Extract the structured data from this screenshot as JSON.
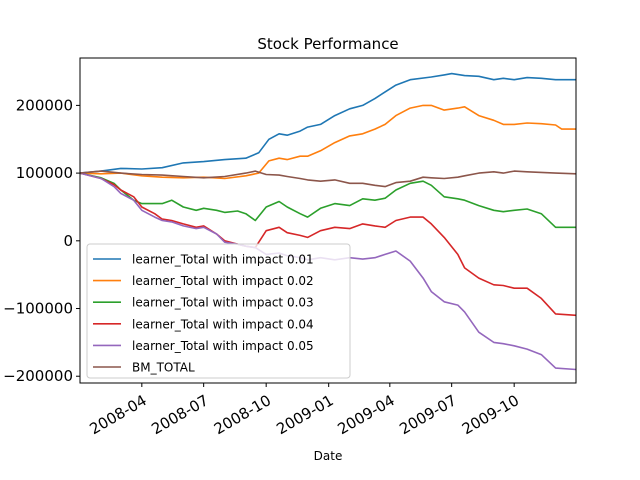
{
  "chart_data": {
    "type": "line",
    "title": "Stock Performance",
    "xlabel": "Date",
    "ylabel": "",
    "xlim": [
      "2008-01-01",
      "2009-12-31"
    ],
    "ylim": [
      -210000,
      270000
    ],
    "x_ticks": [
      {
        "date": "2008-04-01",
        "label": "2008-04"
      },
      {
        "date": "2008-07-01",
        "label": "2008-07"
      },
      {
        "date": "2008-10-01",
        "label": "2008-10"
      },
      {
        "date": "2009-01-01",
        "label": "2009-01"
      },
      {
        "date": "2009-04-01",
        "label": "2009-04"
      },
      {
        "date": "2009-07-01",
        "label": "2009-07"
      },
      {
        "date": "2009-10-01",
        "label": "2009-10"
      }
    ],
    "y_ticks": [
      {
        "value": 200000,
        "label": "200000"
      },
      {
        "value": 100000,
        "label": "100000"
      },
      {
        "value": 0,
        "label": "0"
      },
      {
        "value": -100000,
        "label": "−100000"
      },
      {
        "value": -200000,
        "label": "−200000"
      }
    ],
    "grid": false,
    "legend_position": "lower-left",
    "series": [
      {
        "name": "learner_Total with impact 0.01",
        "color": "#1f77b4",
        "points": [
          [
            "2008-01-01",
            100000
          ],
          [
            "2008-02-01",
            103000
          ],
          [
            "2008-03-01",
            107000
          ],
          [
            "2008-04-01",
            106000
          ],
          [
            "2008-05-01",
            108000
          ],
          [
            "2008-06-01",
            115000
          ],
          [
            "2008-07-01",
            117000
          ],
          [
            "2008-08-01",
            120000
          ],
          [
            "2008-09-01",
            122000
          ],
          [
            "2008-09-20",
            130000
          ],
          [
            "2008-10-05",
            150000
          ],
          [
            "2008-10-20",
            158000
          ],
          [
            "2008-11-01",
            156000
          ],
          [
            "2008-11-20",
            162000
          ],
          [
            "2008-12-01",
            168000
          ],
          [
            "2008-12-20",
            172000
          ],
          [
            "2009-01-10",
            185000
          ],
          [
            "2009-02-01",
            195000
          ],
          [
            "2009-02-20",
            200000
          ],
          [
            "2009-03-10",
            210000
          ],
          [
            "2009-03-25",
            220000
          ],
          [
            "2009-04-10",
            230000
          ],
          [
            "2009-05-01",
            238000
          ],
          [
            "2009-06-01",
            242000
          ],
          [
            "2009-06-20",
            245000
          ],
          [
            "2009-07-01",
            247000
          ],
          [
            "2009-07-20",
            244000
          ],
          [
            "2009-08-10",
            243000
          ],
          [
            "2009-09-01",
            238000
          ],
          [
            "2009-09-15",
            240000
          ],
          [
            "2009-10-01",
            238000
          ],
          [
            "2009-10-20",
            241000
          ],
          [
            "2009-11-10",
            240000
          ],
          [
            "2009-12-01",
            238000
          ],
          [
            "2009-12-31",
            238000
          ]
        ]
      },
      {
        "name": "learner_Total with impact 0.02",
        "color": "#ff7f0e",
        "points": [
          [
            "2008-01-01",
            100000
          ],
          [
            "2008-02-01",
            99000
          ],
          [
            "2008-03-01",
            100000
          ],
          [
            "2008-04-01",
            96000
          ],
          [
            "2008-05-01",
            94000
          ],
          [
            "2008-06-01",
            93000
          ],
          [
            "2008-07-01",
            94000
          ],
          [
            "2008-08-01",
            92000
          ],
          [
            "2008-09-01",
            96000
          ],
          [
            "2008-09-20",
            100000
          ],
          [
            "2008-10-05",
            118000
          ],
          [
            "2008-10-20",
            122000
          ],
          [
            "2008-11-01",
            120000
          ],
          [
            "2008-11-20",
            125000
          ],
          [
            "2008-12-01",
            125000
          ],
          [
            "2008-12-20",
            133000
          ],
          [
            "2009-01-10",
            145000
          ],
          [
            "2009-02-01",
            155000
          ],
          [
            "2009-02-20",
            158000
          ],
          [
            "2009-03-10",
            165000
          ],
          [
            "2009-03-25",
            172000
          ],
          [
            "2009-04-10",
            185000
          ],
          [
            "2009-05-01",
            196000
          ],
          [
            "2009-05-20",
            200000
          ],
          [
            "2009-06-01",
            200000
          ],
          [
            "2009-06-20",
            193000
          ],
          [
            "2009-07-10",
            196000
          ],
          [
            "2009-07-20",
            198000
          ],
          [
            "2009-08-10",
            185000
          ],
          [
            "2009-09-01",
            178000
          ],
          [
            "2009-09-15",
            172000
          ],
          [
            "2009-10-01",
            172000
          ],
          [
            "2009-10-20",
            174000
          ],
          [
            "2009-11-10",
            173000
          ],
          [
            "2009-12-01",
            171000
          ],
          [
            "2009-12-10",
            165000
          ],
          [
            "2009-12-31",
            165000
          ]
        ]
      },
      {
        "name": "learner_Total with impact 0.03",
        "color": "#2ca02c",
        "points": [
          [
            "2008-01-01",
            100000
          ],
          [
            "2008-02-01",
            93000
          ],
          [
            "2008-02-20",
            85000
          ],
          [
            "2008-03-01",
            75000
          ],
          [
            "2008-03-20",
            60000
          ],
          [
            "2008-04-01",
            55000
          ],
          [
            "2008-04-20",
            55000
          ],
          [
            "2008-05-01",
            55000
          ],
          [
            "2008-05-15",
            60000
          ],
          [
            "2008-06-01",
            50000
          ],
          [
            "2008-06-20",
            45000
          ],
          [
            "2008-07-01",
            48000
          ],
          [
            "2008-07-20",
            45000
          ],
          [
            "2008-08-01",
            42000
          ],
          [
            "2008-08-20",
            44000
          ],
          [
            "2008-09-01",
            40000
          ],
          [
            "2008-09-15",
            30000
          ],
          [
            "2008-10-01",
            50000
          ],
          [
            "2008-10-20",
            58000
          ],
          [
            "2008-11-01",
            50000
          ],
          [
            "2008-11-20",
            40000
          ],
          [
            "2008-12-01",
            35000
          ],
          [
            "2008-12-20",
            48000
          ],
          [
            "2009-01-10",
            55000
          ],
          [
            "2009-02-01",
            52000
          ],
          [
            "2009-02-20",
            62000
          ],
          [
            "2009-03-10",
            60000
          ],
          [
            "2009-03-25",
            63000
          ],
          [
            "2009-04-10",
            75000
          ],
          [
            "2009-05-01",
            85000
          ],
          [
            "2009-05-20",
            88000
          ],
          [
            "2009-06-01",
            82000
          ],
          [
            "2009-06-20",
            65000
          ],
          [
            "2009-07-10",
            62000
          ],
          [
            "2009-07-20",
            60000
          ],
          [
            "2009-08-10",
            52000
          ],
          [
            "2009-09-01",
            45000
          ],
          [
            "2009-09-15",
            43000
          ],
          [
            "2009-10-01",
            45000
          ],
          [
            "2009-10-20",
            47000
          ],
          [
            "2009-11-10",
            40000
          ],
          [
            "2009-12-01",
            20000
          ],
          [
            "2009-12-31",
            20000
          ]
        ]
      },
      {
        "name": "learner_Total with impact 0.04",
        "color": "#d62728",
        "points": [
          [
            "2008-01-01",
            100000
          ],
          [
            "2008-02-01",
            92000
          ],
          [
            "2008-02-20",
            83000
          ],
          [
            "2008-03-01",
            75000
          ],
          [
            "2008-03-20",
            65000
          ],
          [
            "2008-04-01",
            50000
          ],
          [
            "2008-04-20",
            40000
          ],
          [
            "2008-05-01",
            32000
          ],
          [
            "2008-05-15",
            30000
          ],
          [
            "2008-06-01",
            25000
          ],
          [
            "2008-06-20",
            20000
          ],
          [
            "2008-07-01",
            22000
          ],
          [
            "2008-07-20",
            10000
          ],
          [
            "2008-08-01",
            0
          ],
          [
            "2008-08-20",
            -5000
          ],
          [
            "2008-09-01",
            -8000
          ],
          [
            "2008-09-15",
            -10000
          ],
          [
            "2008-10-01",
            15000
          ],
          [
            "2008-10-20",
            20000
          ],
          [
            "2008-11-01",
            12000
          ],
          [
            "2008-11-20",
            8000
          ],
          [
            "2008-12-01",
            5000
          ],
          [
            "2008-12-20",
            15000
          ],
          [
            "2009-01-10",
            20000
          ],
          [
            "2009-02-01",
            18000
          ],
          [
            "2009-02-20",
            25000
          ],
          [
            "2009-03-10",
            22000
          ],
          [
            "2009-03-25",
            20000
          ],
          [
            "2009-04-10",
            30000
          ],
          [
            "2009-05-01",
            35000
          ],
          [
            "2009-05-20",
            35000
          ],
          [
            "2009-06-01",
            25000
          ],
          [
            "2009-06-20",
            5000
          ],
          [
            "2009-07-10",
            -20000
          ],
          [
            "2009-07-20",
            -40000
          ],
          [
            "2009-08-10",
            -55000
          ],
          [
            "2009-09-01",
            -65000
          ],
          [
            "2009-09-15",
            -66000
          ],
          [
            "2009-10-01",
            -70000
          ],
          [
            "2009-10-20",
            -70000
          ],
          [
            "2009-11-10",
            -85000
          ],
          [
            "2009-12-01",
            -108000
          ],
          [
            "2009-12-31",
            -110000
          ]
        ]
      },
      {
        "name": "learner_Total with impact 0.05",
        "color": "#9467bd",
        "points": [
          [
            "2008-01-01",
            100000
          ],
          [
            "2008-02-01",
            92000
          ],
          [
            "2008-02-20",
            80000
          ],
          [
            "2008-03-01",
            70000
          ],
          [
            "2008-03-20",
            60000
          ],
          [
            "2008-04-01",
            45000
          ],
          [
            "2008-04-20",
            35000
          ],
          [
            "2008-05-01",
            30000
          ],
          [
            "2008-05-15",
            28000
          ],
          [
            "2008-06-01",
            22000
          ],
          [
            "2008-06-20",
            18000
          ],
          [
            "2008-07-01",
            20000
          ],
          [
            "2008-07-20",
            10000
          ],
          [
            "2008-08-01",
            -2000
          ],
          [
            "2008-08-20",
            -5000
          ],
          [
            "2008-09-01",
            -8000
          ],
          [
            "2008-09-15",
            -10000
          ],
          [
            "2008-10-01",
            -20000
          ],
          [
            "2008-10-20",
            -18000
          ],
          [
            "2008-11-01",
            -22000
          ],
          [
            "2008-11-20",
            -25000
          ],
          [
            "2008-12-01",
            -28000
          ],
          [
            "2008-12-20",
            -25000
          ],
          [
            "2009-01-10",
            -28000
          ],
          [
            "2009-02-01",
            -25000
          ],
          [
            "2009-02-20",
            -27000
          ],
          [
            "2009-03-10",
            -25000
          ],
          [
            "2009-03-25",
            -20000
          ],
          [
            "2009-04-10",
            -15000
          ],
          [
            "2009-05-01",
            -30000
          ],
          [
            "2009-05-20",
            -55000
          ],
          [
            "2009-06-01",
            -75000
          ],
          [
            "2009-06-20",
            -90000
          ],
          [
            "2009-07-10",
            -95000
          ],
          [
            "2009-07-20",
            -105000
          ],
          [
            "2009-08-10",
            -135000
          ],
          [
            "2009-09-01",
            -150000
          ],
          [
            "2009-09-15",
            -152000
          ],
          [
            "2009-10-01",
            -155000
          ],
          [
            "2009-10-20",
            -160000
          ],
          [
            "2009-11-10",
            -168000
          ],
          [
            "2009-12-01",
            -188000
          ],
          [
            "2009-12-31",
            -190000
          ]
        ]
      },
      {
        "name": "BM_TOTAL",
        "color": "#8c564b",
        "points": [
          [
            "2008-01-01",
            100000
          ],
          [
            "2008-02-01",
            103000
          ],
          [
            "2008-03-01",
            100000
          ],
          [
            "2008-04-01",
            98000
          ],
          [
            "2008-05-01",
            97000
          ],
          [
            "2008-06-01",
            95000
          ],
          [
            "2008-07-01",
            93000
          ],
          [
            "2008-08-01",
            95000
          ],
          [
            "2008-09-01",
            100000
          ],
          [
            "2008-09-15",
            103000
          ],
          [
            "2008-10-01",
            98000
          ],
          [
            "2008-10-20",
            97000
          ],
          [
            "2008-11-01",
            95000
          ],
          [
            "2008-11-20",
            92000
          ],
          [
            "2008-12-01",
            90000
          ],
          [
            "2008-12-20",
            88000
          ],
          [
            "2009-01-10",
            90000
          ],
          [
            "2009-02-01",
            85000
          ],
          [
            "2009-02-20",
            85000
          ],
          [
            "2009-03-10",
            82000
          ],
          [
            "2009-03-25",
            80000
          ],
          [
            "2009-04-10",
            86000
          ],
          [
            "2009-05-01",
            88000
          ],
          [
            "2009-05-20",
            94000
          ],
          [
            "2009-06-01",
            93000
          ],
          [
            "2009-06-20",
            92000
          ],
          [
            "2009-07-10",
            94000
          ],
          [
            "2009-07-20",
            96000
          ],
          [
            "2009-08-10",
            100000
          ],
          [
            "2009-09-01",
            102000
          ],
          [
            "2009-09-15",
            100000
          ],
          [
            "2009-10-01",
            103000
          ],
          [
            "2009-10-20",
            102000
          ],
          [
            "2009-11-10",
            101000
          ],
          [
            "2009-12-01",
            100000
          ],
          [
            "2009-12-31",
            99000
          ]
        ]
      }
    ]
  }
}
